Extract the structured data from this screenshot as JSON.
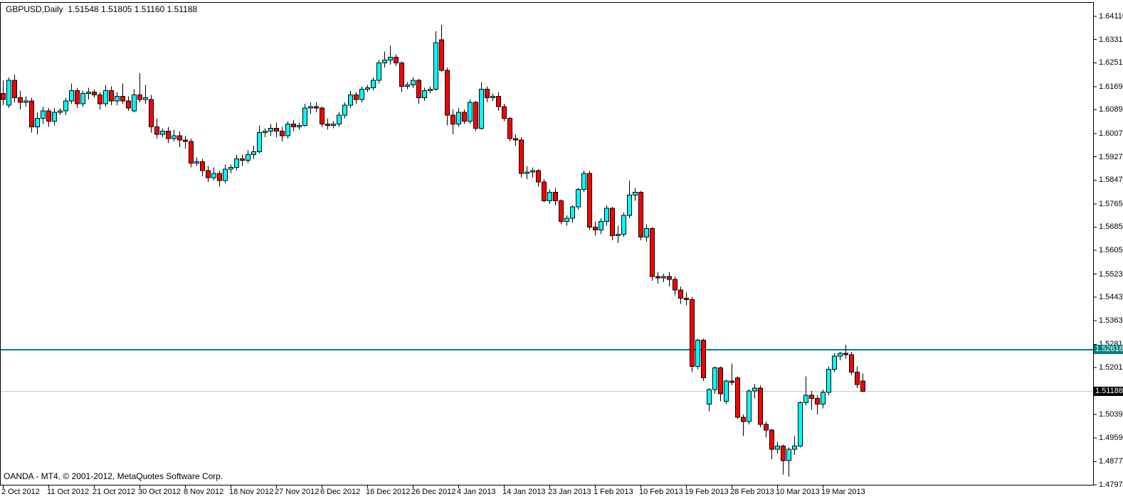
{
  "window": {
    "title_line": "GBPUSD,Daily  1.51548 1.51805 1.51160 1.51188",
    "footer": "OANDA - MT4, © 2001-2012, MetaQuotes Software Corp."
  },
  "price_axis": {
    "tick_labels": [
      "1.64110",
      "1.63310",
      "1.62510",
      "1.61690",
      "1.60890",
      "1.60070",
      "1.59270",
      "1.58470",
      "1.57650",
      "1.56850",
      "1.56050",
      "1.55230",
      "1.54430",
      "1.53630",
      "1.52810",
      "1.52010",
      "1.50390",
      "1.49590",
      "1.48770",
      "1.47970"
    ],
    "highlighted_teal_label": "1.52618",
    "highlighted_black_label": "1.51188"
  },
  "time_axis": {
    "tick_labels": [
      "2 Oct 2012",
      "11 Oct 2012",
      "21 Oct 2012",
      "30 Oct 2012",
      "8 Nov 2012",
      "18 Nov 2012",
      "27 Nov 2012",
      "6 Dec 2012",
      "16 Dec 2012",
      "26 Dec 2012",
      "4 Jan 2013",
      "14 Jan 2013",
      "23 Jan 2013",
      "1 Feb 2013",
      "10 Feb 2013",
      "19 Feb 2013",
      "28 Feb 2013",
      "10 Mar 2013",
      "19 Mar 2013"
    ],
    "bars_per_label": 8
  },
  "colors": {
    "background": "#FFFFFF",
    "border": "#000000",
    "up_candle": "#00FFFF",
    "down_candle": "#FF0000",
    "candle_outline": "#000000",
    "teal_line": "#008080",
    "teal_label_bg": "#008080",
    "current_price_line": "#C8C8C8",
    "current_label_bg": "#000000",
    "label_text": "#FFFFFF"
  },
  "chart_data": {
    "type": "candlestick",
    "symbol": "GBPUSD",
    "timeframe": "Daily",
    "title": "GBPUSD,Daily",
    "current_ohlc": {
      "open": 1.51548,
      "high": 1.51805,
      "low": 1.5116,
      "close": 1.51188
    },
    "horizontal_lines": [
      {
        "name": "teal-level-line",
        "price": 1.52618,
        "color": "#008080"
      },
      {
        "name": "current-price-line",
        "price": 1.51188,
        "color": "#C8C8C8"
      }
    ],
    "y_axis_ticks": [
      1.6411,
      1.6331,
      1.6251,
      1.6169,
      1.6089,
      1.6007,
      1.5927,
      1.5847,
      1.5765,
      1.5685,
      1.5605,
      1.5523,
      1.5443,
      1.5363,
      1.5281,
      1.5201,
      1.5039,
      1.4959,
      1.4877,
      1.4797
    ],
    "x_axis_ticks": [
      "2 Oct 2012",
      "11 Oct 2012",
      "21 Oct 2012",
      "30 Oct 2012",
      "8 Nov 2012",
      "18 Nov 2012",
      "27 Nov 2012",
      "6 Dec 2012",
      "16 Dec 2012",
      "26 Dec 2012",
      "4 Jan 2013",
      "14 Jan 2013",
      "23 Jan 2013",
      "1 Feb 2013",
      "10 Feb 2013",
      "19 Feb 2013",
      "28 Feb 2013",
      "10 Mar 2013",
      "19 Mar 2013"
    ],
    "visible_price_range": [
      1.4796,
      1.6459
    ],
    "grid": false,
    "candles_ohlc": [
      [
        1.6145,
        1.619,
        1.6105,
        1.6125
      ],
      [
        1.6105,
        1.62,
        1.6095,
        1.619
      ],
      [
        1.619,
        1.621,
        1.6115,
        1.613
      ],
      [
        1.613,
        1.6155,
        1.609,
        1.6115
      ],
      [
        1.6115,
        1.6135,
        1.61,
        1.612
      ],
      [
        1.612,
        1.613,
        1.601,
        1.603
      ],
      [
        1.603,
        1.608,
        1.6005,
        1.606
      ],
      [
        1.606,
        1.61,
        1.604,
        1.6085
      ],
      [
        1.6085,
        1.6095,
        1.603,
        1.605
      ],
      [
        1.605,
        1.6095,
        1.6035,
        1.608
      ],
      [
        1.608,
        1.6095,
        1.607,
        1.6085
      ],
      [
        1.6085,
        1.613,
        1.607,
        1.612
      ],
      [
        1.612,
        1.618,
        1.611,
        1.6155
      ],
      [
        1.6155,
        1.6165,
        1.6095,
        1.611
      ],
      [
        1.611,
        1.6155,
        1.61,
        1.6145
      ],
      [
        1.6145,
        1.6165,
        1.6125,
        1.615
      ],
      [
        1.615,
        1.616,
        1.613,
        1.614
      ],
      [
        1.614,
        1.615,
        1.609,
        1.611
      ],
      [
        1.611,
        1.6175,
        1.61,
        1.6155
      ],
      [
        1.6155,
        1.617,
        1.6105,
        1.612
      ],
      [
        1.612,
        1.615,
        1.6105,
        1.6135
      ],
      [
        1.6135,
        1.618,
        1.611,
        1.612
      ],
      [
        1.612,
        1.6135,
        1.6085,
        1.6095
      ],
      [
        1.6085,
        1.616,
        1.608,
        1.614
      ],
      [
        1.614,
        1.6215,
        1.6115,
        1.6125
      ],
      [
        1.6125,
        1.6175,
        1.611,
        1.613
      ],
      [
        1.6125,
        1.614,
        1.601,
        1.603
      ],
      [
        1.603,
        1.606,
        1.599,
        1.6005
      ],
      [
        1.6005,
        1.6025,
        1.5995,
        1.6015
      ],
      [
        1.6015,
        1.603,
        1.5975,
        1.599
      ],
      [
        1.599,
        1.602,
        1.598,
        1.6
      ],
      [
        1.6,
        1.6015,
        1.596,
        1.5985
      ],
      [
        1.5985,
        1.6,
        1.5955,
        1.598
      ],
      [
        1.598,
        1.599,
        1.589,
        1.5905
      ],
      [
        1.5905,
        1.5925,
        1.5895,
        1.591
      ],
      [
        1.591,
        1.592,
        1.586,
        1.588
      ],
      [
        1.588,
        1.5895,
        1.584,
        1.5855
      ],
      [
        1.5855,
        1.589,
        1.5845,
        1.587
      ],
      [
        1.587,
        1.588,
        1.5825,
        1.5845
      ],
      [
        1.5845,
        1.59,
        1.5835,
        1.5885
      ],
      [
        1.5885,
        1.59,
        1.587,
        1.589
      ],
      [
        1.589,
        1.5935,
        1.588,
        1.592
      ],
      [
        1.592,
        1.5935,
        1.5895,
        1.5915
      ],
      [
        1.5915,
        1.595,
        1.5905,
        1.5935
      ],
      [
        1.5935,
        1.5965,
        1.592,
        1.5945
      ],
      [
        1.5945,
        1.6035,
        1.594,
        1.601
      ],
      [
        1.601,
        1.6025,
        1.5995,
        1.6015
      ],
      [
        1.6015,
        1.604,
        1.6,
        1.6025
      ],
      [
        1.6025,
        1.6045,
        1.5995,
        1.6015
      ],
      [
        1.6015,
        1.603,
        1.598,
        1.6
      ],
      [
        1.6,
        1.605,
        1.599,
        1.604
      ],
      [
        1.604,
        1.6055,
        1.6015,
        1.603
      ],
      [
        1.603,
        1.6045,
        1.602,
        1.6035
      ],
      [
        1.6035,
        1.611,
        1.603,
        1.6095
      ],
      [
        1.6095,
        1.6115,
        1.6075,
        1.61
      ],
      [
        1.61,
        1.6115,
        1.608,
        1.6095
      ],
      [
        1.6095,
        1.61,
        1.603,
        1.604
      ],
      [
        1.604,
        1.606,
        1.602,
        1.6035
      ],
      [
        1.6035,
        1.605,
        1.6025,
        1.604
      ],
      [
        1.604,
        1.608,
        1.603,
        1.607
      ],
      [
        1.607,
        1.6115,
        1.606,
        1.6105
      ],
      [
        1.6105,
        1.6155,
        1.6095,
        1.614
      ],
      [
        1.614,
        1.615,
        1.611,
        1.6125
      ],
      [
        1.6125,
        1.617,
        1.6115,
        1.616
      ],
      [
        1.616,
        1.6175,
        1.615,
        1.6165
      ],
      [
        1.6165,
        1.62,
        1.6155,
        1.619
      ],
      [
        1.619,
        1.626,
        1.618,
        1.625
      ],
      [
        1.625,
        1.629,
        1.6235,
        1.626
      ],
      [
        1.626,
        1.631,
        1.6245,
        1.627
      ],
      [
        1.627,
        1.628,
        1.624,
        1.625
      ],
      [
        1.625,
        1.6255,
        1.615,
        1.617
      ],
      [
        1.617,
        1.6185,
        1.616,
        1.6175
      ],
      [
        1.6175,
        1.62,
        1.6165,
        1.619
      ],
      [
        1.619,
        1.6195,
        1.611,
        1.613
      ],
      [
        1.613,
        1.6165,
        1.612,
        1.6155
      ],
      [
        1.6155,
        1.617,
        1.6145,
        1.616
      ],
      [
        1.616,
        1.636,
        1.6155,
        1.632
      ],
      [
        1.633,
        1.6381,
        1.622,
        1.6225
      ],
      [
        1.6225,
        1.6235,
        1.6035,
        1.607
      ],
      [
        1.607,
        1.609,
        1.6005,
        1.604
      ],
      [
        1.604,
        1.6095,
        1.603,
        1.608
      ],
      [
        1.608,
        1.609,
        1.604,
        1.605
      ],
      [
        1.605,
        1.6125,
        1.604,
        1.6115
      ],
      [
        1.6115,
        1.612,
        1.6015,
        1.6025
      ],
      [
        1.6025,
        1.6185,
        1.602,
        1.616
      ],
      [
        1.616,
        1.617,
        1.6115,
        1.613
      ],
      [
        1.613,
        1.6145,
        1.612,
        1.6135
      ],
      [
        1.6135,
        1.615,
        1.6085,
        1.61
      ],
      [
        1.61,
        1.611,
        1.605,
        1.606
      ],
      [
        1.606,
        1.6065,
        1.598,
        1.599
      ],
      [
        1.599,
        1.6005,
        1.5965,
        1.5985
      ],
      [
        1.5985,
        1.5995,
        1.5855,
        1.587
      ],
      [
        1.587,
        1.5895,
        1.585,
        1.5875
      ],
      [
        1.5875,
        1.589,
        1.5855,
        1.588
      ],
      [
        1.588,
        1.5885,
        1.5825,
        1.584
      ],
      [
        1.584,
        1.585,
        1.577,
        1.5775
      ],
      [
        1.5775,
        1.5815,
        1.5765,
        1.5805
      ],
      [
        1.5805,
        1.582,
        1.576,
        1.5775
      ],
      [
        1.5775,
        1.578,
        1.5695,
        1.5705
      ],
      [
        1.5705,
        1.5725,
        1.569,
        1.5715
      ],
      [
        1.5715,
        1.576,
        1.57,
        1.5755
      ],
      [
        1.5755,
        1.582,
        1.5745,
        1.5815
      ],
      [
        1.5815,
        1.588,
        1.5805,
        1.587
      ],
      [
        1.587,
        1.5878,
        1.5675,
        1.5685
      ],
      [
        1.5685,
        1.5705,
        1.5655,
        1.5675
      ],
      [
        1.5675,
        1.5715,
        1.566,
        1.5705
      ],
      [
        1.5705,
        1.576,
        1.569,
        1.575
      ],
      [
        1.575,
        1.5755,
        1.564,
        1.5655
      ],
      [
        1.5655,
        1.569,
        1.563,
        1.566
      ],
      [
        1.566,
        1.5735,
        1.565,
        1.5725
      ],
      [
        1.5725,
        1.5845,
        1.5715,
        1.5795
      ],
      [
        1.5795,
        1.582,
        1.5775,
        1.5805
      ],
      [
        1.5805,
        1.581,
        1.564,
        1.565
      ],
      [
        1.565,
        1.5695,
        1.5635,
        1.568
      ],
      [
        1.568,
        1.5685,
        1.55,
        1.5515
      ],
      [
        1.5515,
        1.553,
        1.549,
        1.551
      ],
      [
        1.551,
        1.5525,
        1.5495,
        1.5515
      ],
      [
        1.5515,
        1.553,
        1.548,
        1.5505
      ],
      [
        1.5505,
        1.5515,
        1.545,
        1.5468
      ],
      [
        1.5468,
        1.548,
        1.542,
        1.544
      ],
      [
        1.544,
        1.546,
        1.5415,
        1.5435
      ],
      [
        1.5435,
        1.5445,
        1.5185,
        1.5205
      ],
      [
        1.5205,
        1.53,
        1.5195,
        1.5295
      ],
      [
        1.5295,
        1.53,
        1.5155,
        1.5165
      ],
      [
        1.5075,
        1.513,
        1.505,
        1.5125
      ],
      [
        1.5125,
        1.5205,
        1.511,
        1.52
      ],
      [
        1.52,
        1.5205,
        1.5085,
        1.511
      ],
      [
        1.5085,
        1.516,
        1.5075,
        1.5155
      ],
      [
        1.5155,
        1.5215,
        1.514,
        1.515
      ],
      [
        1.5165,
        1.517,
        1.5025,
        1.503
      ],
      [
        1.503,
        1.504,
        1.4965,
        1.5015
      ],
      [
        1.5015,
        1.5125,
        1.5005,
        1.512
      ],
      [
        1.512,
        1.5145,
        1.5095,
        1.513
      ],
      [
        1.513,
        1.514,
        1.4995,
        1.5005
      ],
      [
        1.5005,
        1.5015,
        1.496,
        1.4985
      ],
      [
        1.4985,
        1.499,
        1.4885,
        1.492
      ],
      [
        1.492,
        1.4945,
        1.4905,
        1.493
      ],
      [
        1.493,
        1.4935,
        1.4832,
        1.488
      ],
      [
        1.488,
        1.4925,
        1.4825,
        1.492
      ],
      [
        1.492,
        1.4965,
        1.49,
        1.493
      ],
      [
        1.493,
        1.5085,
        1.4925,
        1.508
      ],
      [
        1.508,
        1.517,
        1.507,
        1.5105
      ],
      [
        1.5105,
        1.512,
        1.5055,
        1.5095
      ],
      [
        1.5095,
        1.5105,
        1.504,
        1.5075
      ],
      [
        1.5075,
        1.5125,
        1.506,
        1.5115
      ],
      [
        1.5115,
        1.5205,
        1.5105,
        1.5195
      ],
      [
        1.5195,
        1.525,
        1.5185,
        1.524
      ],
      [
        1.524,
        1.5255,
        1.5225,
        1.525
      ],
      [
        1.525,
        1.528,
        1.523,
        1.5245
      ],
      [
        1.5245,
        1.5255,
        1.5175,
        1.5185
      ],
      [
        1.5185,
        1.5205,
        1.513,
        1.5142
      ],
      [
        1.51548,
        1.51805,
        1.5116,
        1.51188
      ]
    ]
  }
}
